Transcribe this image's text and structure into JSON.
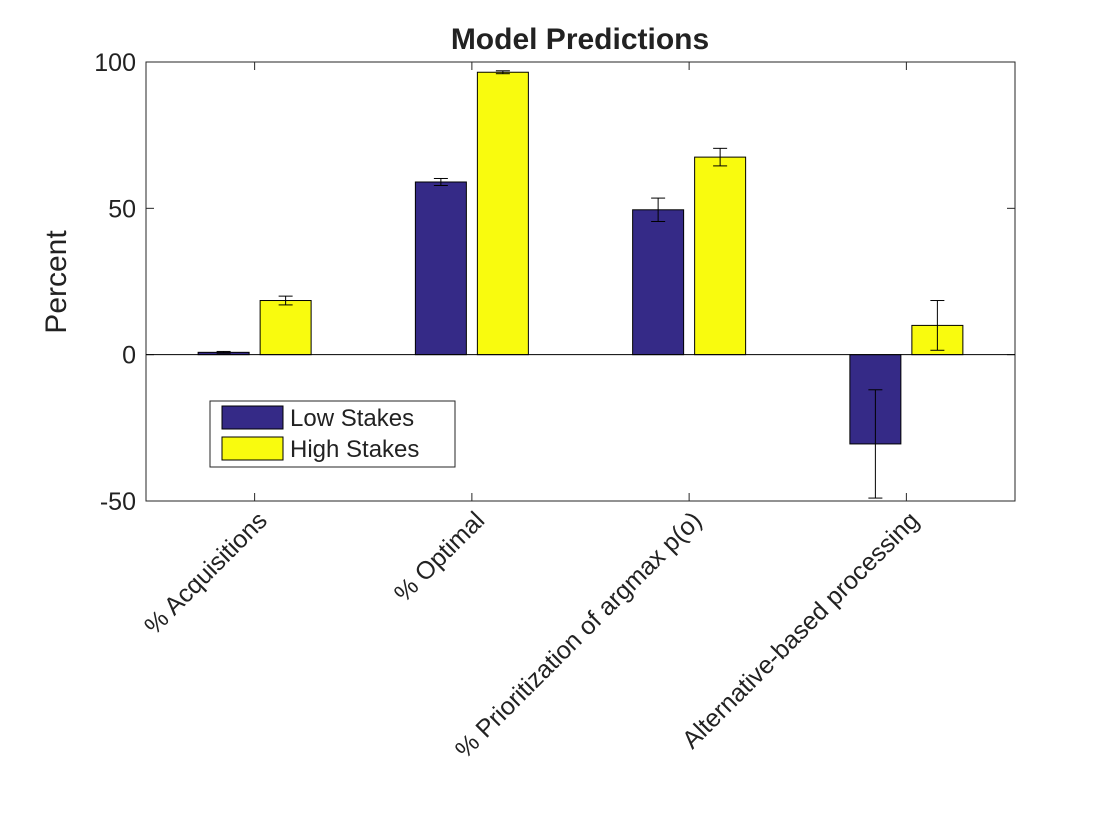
{
  "chart_data": {
    "type": "bar",
    "title": "Model Predictions",
    "xlabel": "",
    "ylabel": "Percent",
    "ylim": [
      -50,
      100
    ],
    "yticks": [
      "-50",
      "0",
      "50",
      "100"
    ],
    "grid": false,
    "legend_position": "lower-left",
    "categories": [
      "% Acquisitions",
      "% Optimal",
      "% Prioritization of argmax p(o)",
      "Alternative-based processing"
    ],
    "series": [
      {
        "name": "Low Stakes",
        "color": "#352a87",
        "values": [
          0.8,
          59,
          49.5,
          -30.5
        ],
        "error": [
          0.3,
          1.2,
          4,
          18.5
        ]
      },
      {
        "name": "High Stakes",
        "color": "#f9fb0e",
        "values": [
          18.5,
          96.5,
          67.5,
          10
        ],
        "error": [
          1.5,
          0.5,
          3,
          8.5
        ]
      }
    ]
  }
}
